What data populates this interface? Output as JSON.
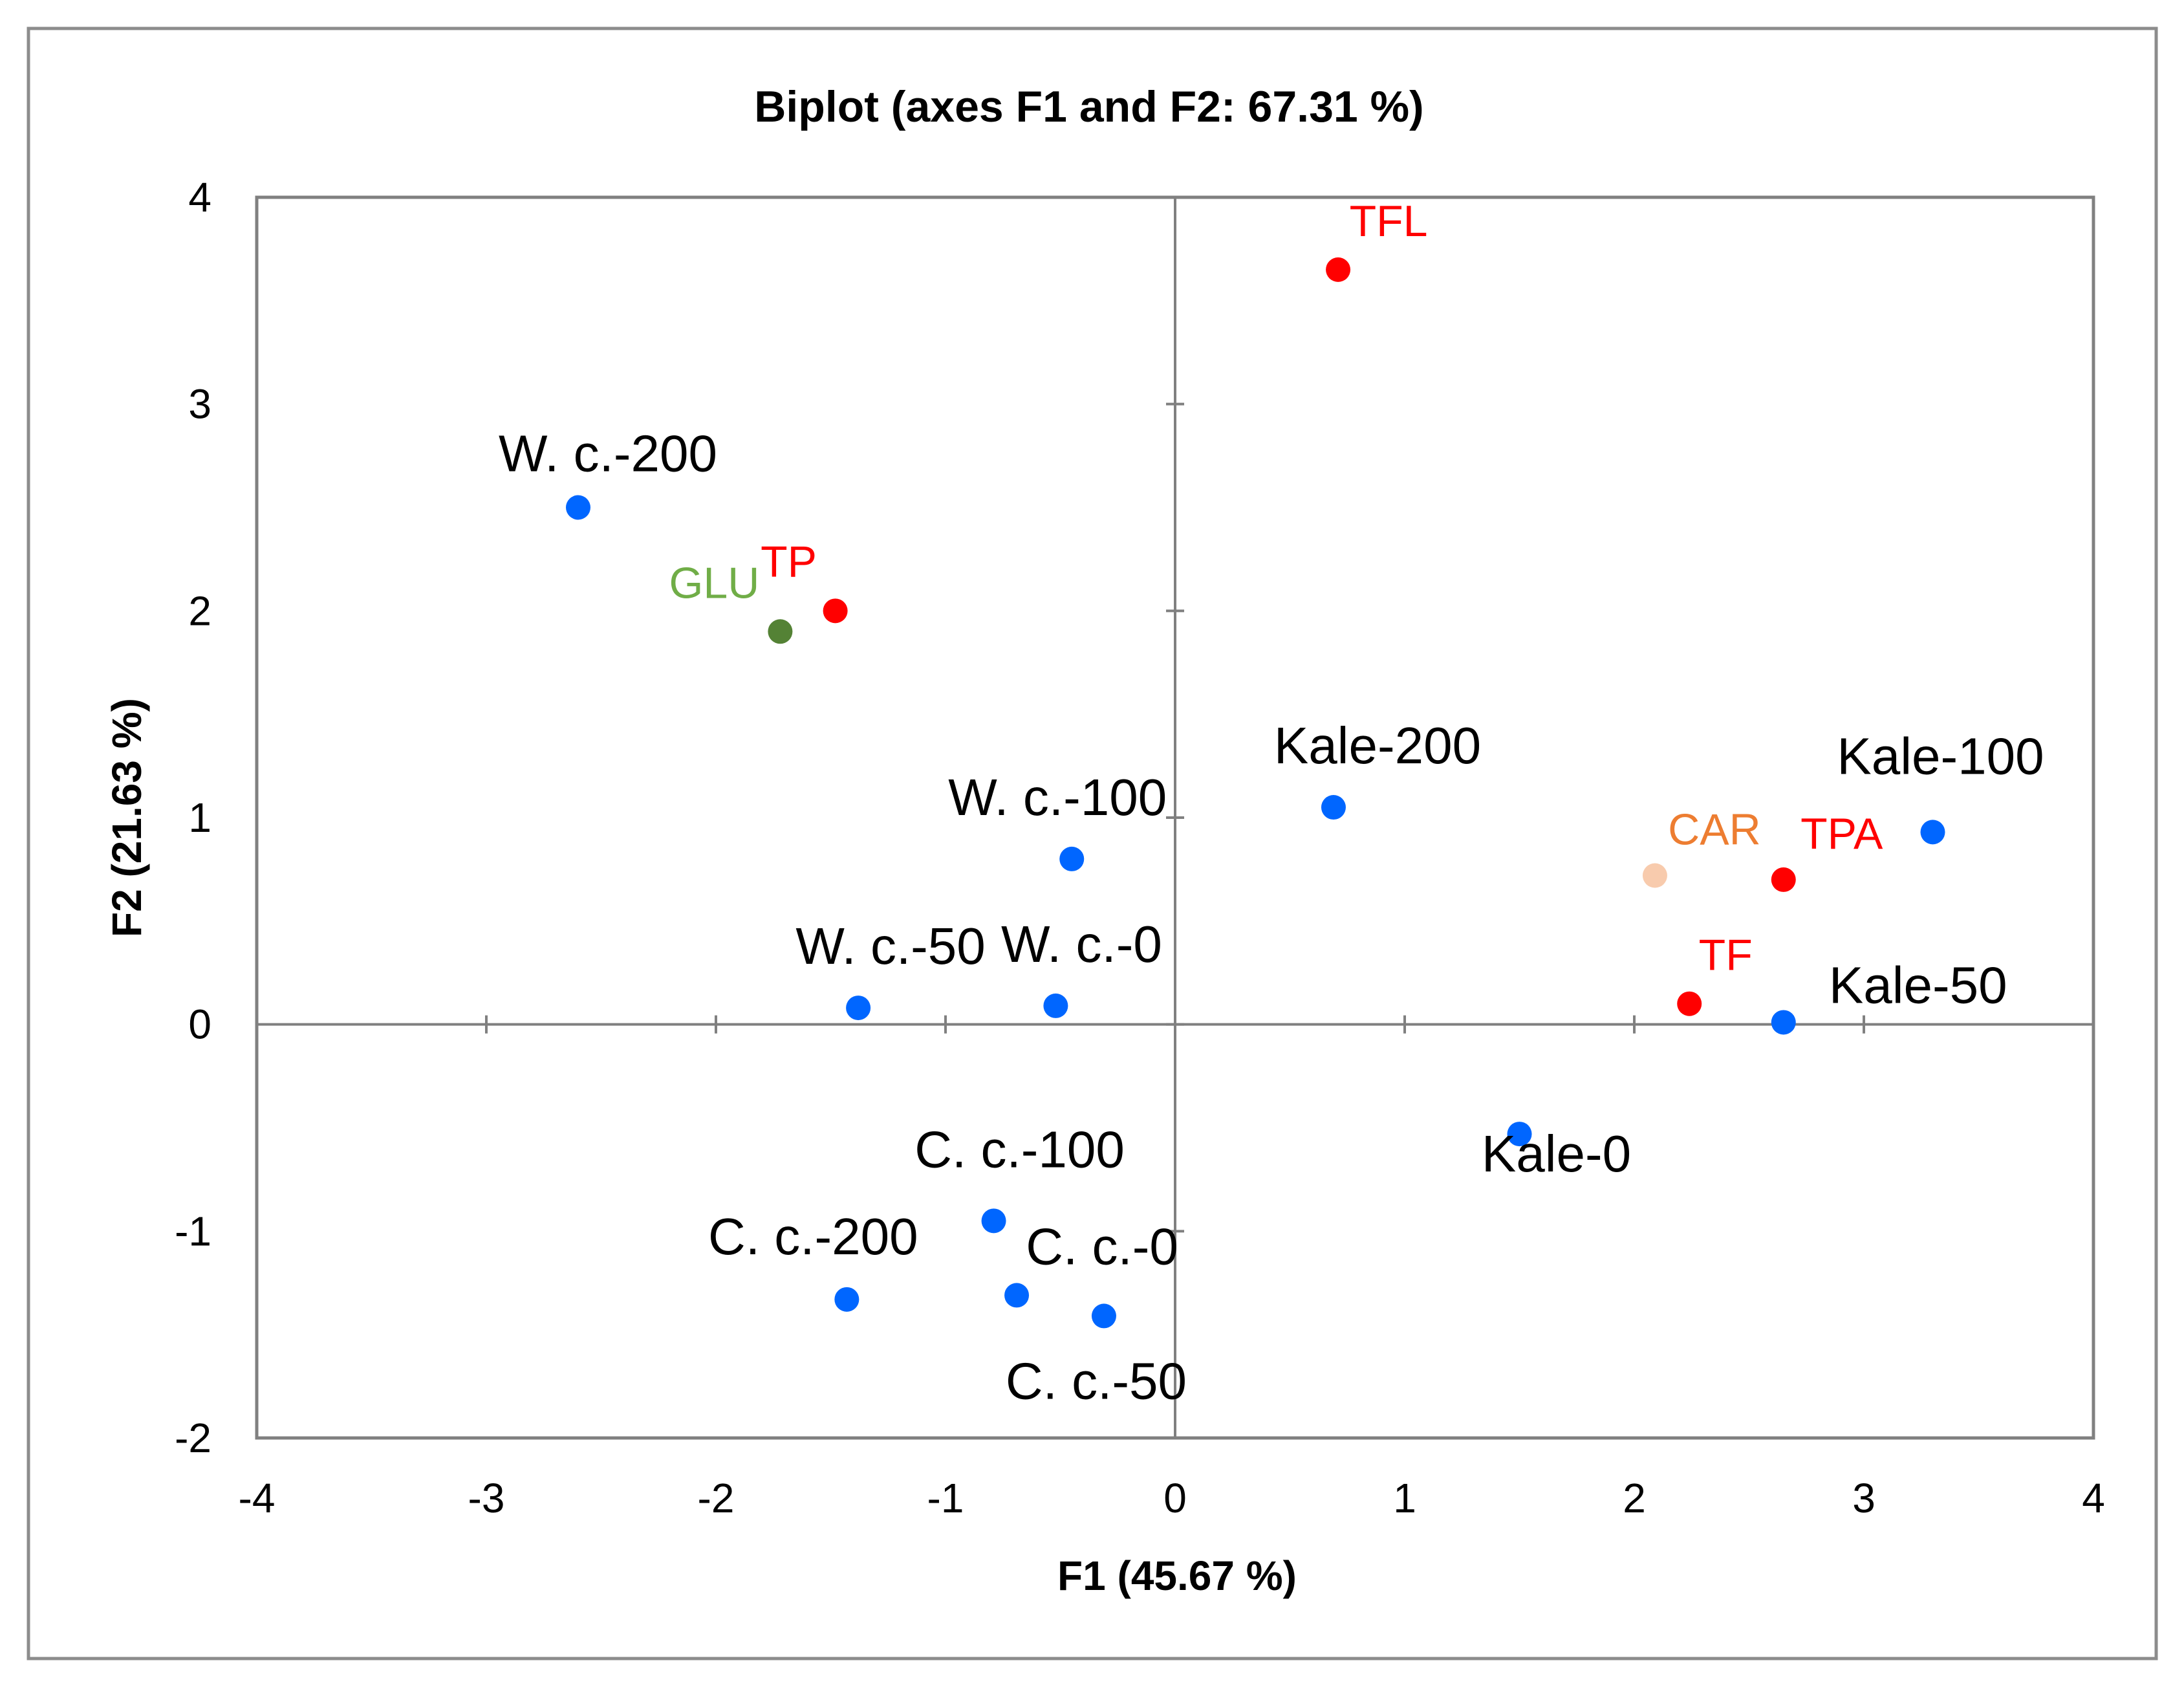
{
  "chart_data": {
    "type": "scatter",
    "title": "Biplot (axes F1 and F2: 67.31 %)",
    "xlabel": "F1 (45.67 %)",
    "ylabel": "F2 (21.63 %)",
    "xlim": [
      -4,
      4
    ],
    "ylim": [
      -2,
      4
    ],
    "xticks": [
      "-4",
      "-3",
      "-2",
      "-1",
      "0",
      "1",
      "2",
      "3",
      "4"
    ],
    "yticks": [
      "-2",
      "-1",
      "0",
      "1",
      "2",
      "3",
      "4"
    ],
    "grid": false,
    "series": [
      {
        "name": "Observations",
        "color": "#0066ff",
        "label_color": "#000000",
        "points": [
          {
            "label": "W. c.-200",
            "x": -2.6,
            "y": 2.5
          },
          {
            "label": "W. c.-100",
            "x": -0.45,
            "y": 0.8
          },
          {
            "label": "W. c.-50",
            "x": -1.38,
            "y": 0.08
          },
          {
            "label": "W. c.-0",
            "x": -0.52,
            "y": 0.09
          },
          {
            "label": "Kale-200",
            "x": 0.69,
            "y": 1.05
          },
          {
            "label": "Kale-100",
            "x": 3.3,
            "y": 0.93
          },
          {
            "label": "Kale-50",
            "x": 2.65,
            "y": 0.01
          },
          {
            "label": "Kale-0",
            "x": 1.5,
            "y": -0.53
          },
          {
            "label": "C. c.-100",
            "x": -0.79,
            "y": -0.95
          },
          {
            "label": "C. c.-200",
            "x": -1.43,
            "y": -1.33
          },
          {
            "label": "C. c.-0",
            "x": -0.69,
            "y": -1.31
          },
          {
            "label": "C. c.-50",
            "x": -0.31,
            "y": -1.41
          }
        ]
      },
      {
        "name": "Variables",
        "points": [
          {
            "label": "TFL",
            "x": 0.71,
            "y": 3.65,
            "color": "#ff0000",
            "label_color": "#ff0000"
          },
          {
            "label": "TP",
            "x": -1.48,
            "y": 2.0,
            "color": "#ff0000",
            "label_color": "#ff0000"
          },
          {
            "label": "GLU",
            "x": -1.72,
            "y": 1.9,
            "color": "#548235",
            "label_color": "#70ad47"
          },
          {
            "label": "CAR",
            "x": 2.09,
            "y": 0.72,
            "color": "#f8cbad",
            "label_color": "#ed7d31"
          },
          {
            "label": "TPA",
            "x": 2.65,
            "y": 0.7,
            "color": "#ff0000",
            "label_color": "#ff0000"
          },
          {
            "label": "TF",
            "x": 2.24,
            "y": 0.1,
            "color": "#ff0000",
            "label_color": "#ff0000"
          }
        ]
      }
    ]
  }
}
